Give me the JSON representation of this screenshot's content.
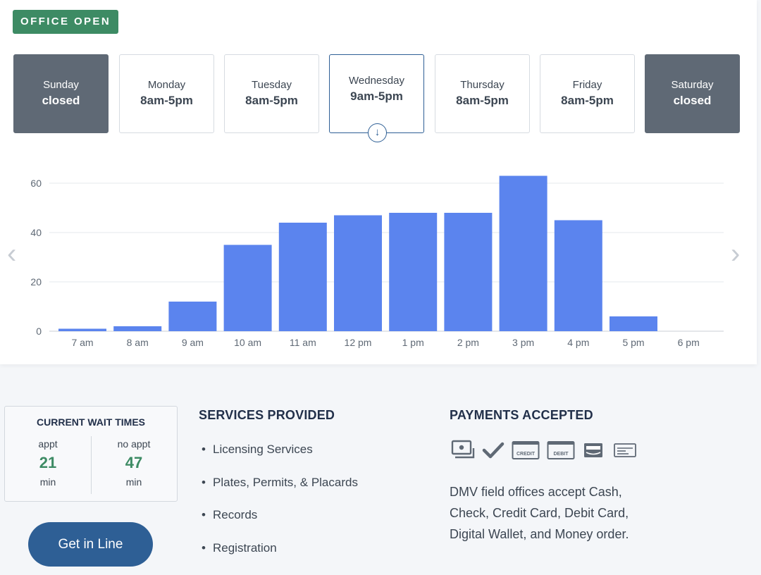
{
  "status": {
    "label": "OFFICE OPEN"
  },
  "days": [
    {
      "name": "Sunday",
      "hours": "closed",
      "state": "closed"
    },
    {
      "name": "Monday",
      "hours": "8am-5pm",
      "state": "open"
    },
    {
      "name": "Tuesday",
      "hours": "8am-5pm",
      "state": "open"
    },
    {
      "name": "Wednesday",
      "hours": "9am-5pm",
      "state": "selected"
    },
    {
      "name": "Thursday",
      "hours": "8am-5pm",
      "state": "open"
    },
    {
      "name": "Friday",
      "hours": "8am-5pm",
      "state": "open"
    },
    {
      "name": "Saturday",
      "hours": "closed",
      "state": "closed"
    }
  ],
  "selected_day_icon": "arrow-down-circle-icon",
  "chart_data": {
    "type": "bar",
    "categories": [
      "7 am",
      "8 am",
      "9 am",
      "10 am",
      "11 am",
      "12 pm",
      "1 pm",
      "2 pm",
      "3 pm",
      "4 pm",
      "5 pm",
      "6 pm"
    ],
    "values": [
      1,
      2,
      12,
      35,
      44,
      47,
      48,
      48,
      63,
      45,
      6,
      0
    ],
    "yticks": [
      0,
      20,
      40,
      60
    ],
    "ylim": [
      0,
      60
    ],
    "grid": true,
    "bar_color": "#5b84ee",
    "title": "",
    "xlabel": "",
    "ylabel": ""
  },
  "nav": {
    "prev": "‹",
    "next": "›"
  },
  "wait_times": {
    "title": "CURRENT WAIT TIMES",
    "appt_label": "appt",
    "appt_value": "21",
    "appt_unit": "min",
    "noappt_label": "no appt",
    "noappt_value": "47",
    "noappt_unit": "min"
  },
  "cta": {
    "label": "Get in Line"
  },
  "services": {
    "title": "SERVICES PROVIDED",
    "items": [
      "Licensing Services",
      "Plates, Permits, & Placards",
      "Records",
      "Registration"
    ]
  },
  "payments": {
    "title": "PAYMENTS ACCEPTED",
    "icons": [
      "cash-icon",
      "check-icon",
      "credit-card-icon",
      "debit-card-icon",
      "digital-wallet-icon",
      "money-order-icon"
    ],
    "credit_text": "CREDIT",
    "debit_text": "DEBIT",
    "description": "DMV field offices accept Cash, Check, Credit Card, Debit Card, Digital Wallet, and Money order."
  },
  "colors": {
    "accent_green": "#3d8b64",
    "accent_blue": "#2e5f95",
    "closed_gray": "#5f6975",
    "bar_blue": "#5b84ee"
  }
}
